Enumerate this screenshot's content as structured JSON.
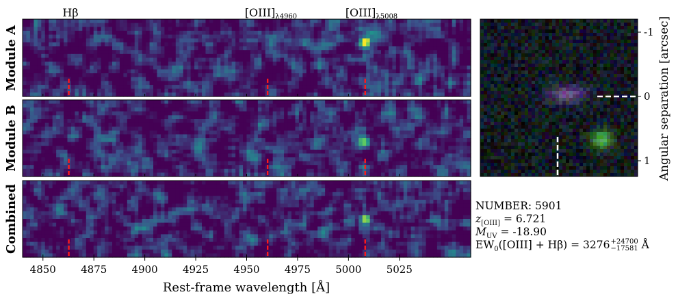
{
  "figure": {
    "top_labels": [
      {
        "id": "hbeta",
        "text": "Hβ",
        "wavelength": 4862.7
      },
      {
        "id": "oiii4960",
        "text": "[OIII]",
        "sub": "λ4960",
        "wavelength": 4960.3
      },
      {
        "id": "oiii5008",
        "text": "[OIII]",
        "sub": "λ5008",
        "wavelength": 5008.2
      }
    ],
    "panel_labels": [
      "Module A",
      "Module B",
      "Combined"
    ],
    "xlabel": "Rest-frame wavelength [Å]",
    "right_ylabel": "Angular separation [arcsec]",
    "colors": {
      "line_marker": "#ff1a1a",
      "cutout_marker": "#ffffff"
    }
  },
  "info": {
    "number": "NUMBER: 5901",
    "z_prefix": "z",
    "z_sub": "[OIII]",
    "z_value": " = 6.721",
    "muv_prefix": "M",
    "muv_sub": "UV",
    "muv_value": " = -18.90",
    "ew_prefix": "EW",
    "ew_sub": "0",
    "ew_mid": "([OIII] + Hβ) = 3276",
    "ew_up": "+24700",
    "ew_down": "−17581",
    "ew_unit": " Å"
  },
  "chart_data": [
    {
      "type": "heatmap",
      "name": "Module A",
      "xlim": [
        4840,
        5060
      ],
      "xticks": [
        4850,
        4875,
        4900,
        4925,
        4950,
        4975,
        5000,
        5025
      ],
      "line_markers": [
        4862.7,
        4960.3,
        5008.2
      ],
      "sources": [
        {
          "wavelength": 5008.2,
          "offset": -0.2,
          "strength": 1.0
        }
      ],
      "colormap": "viridis"
    },
    {
      "type": "heatmap",
      "name": "Module B",
      "xlim": [
        4840,
        5060
      ],
      "xticks": [
        4850,
        4875,
        4900,
        4925,
        4950,
        4975,
        5000,
        5025
      ],
      "line_markers": [
        4862.7,
        4960.3,
        5008.2
      ],
      "sources": [
        {
          "wavelength": 5008.2,
          "offset": 0.05,
          "strength": 0.8
        }
      ],
      "colormap": "viridis"
    },
    {
      "type": "heatmap",
      "name": "Combined",
      "xlim": [
        4840,
        5060
      ],
      "xticks": [
        4850,
        4875,
        4900,
        4925,
        4950,
        4975,
        5000,
        5025
      ],
      "xticklabels": [
        "4850",
        "4875",
        "4900",
        "4925",
        "4950",
        "4975",
        "5000",
        "5025"
      ],
      "line_markers": [
        4862.7,
        4960.3,
        5008.2
      ],
      "sources": [
        {
          "wavelength": 5008.2,
          "offset": 0.0,
          "strength": 1.0
        }
      ],
      "colormap": "viridis"
    },
    {
      "type": "heatmap",
      "name": "RGB cutout",
      "ylim": [
        -1.2,
        1.2
      ],
      "yticks": [
        -1,
        0,
        1
      ],
      "yticklabels": [
        "-1",
        "0",
        "1"
      ],
      "ylabel": "Angular separation [arcsec]",
      "markers": [
        "horizontal dashed at 0",
        "vertical dashed below center"
      ]
    }
  ]
}
